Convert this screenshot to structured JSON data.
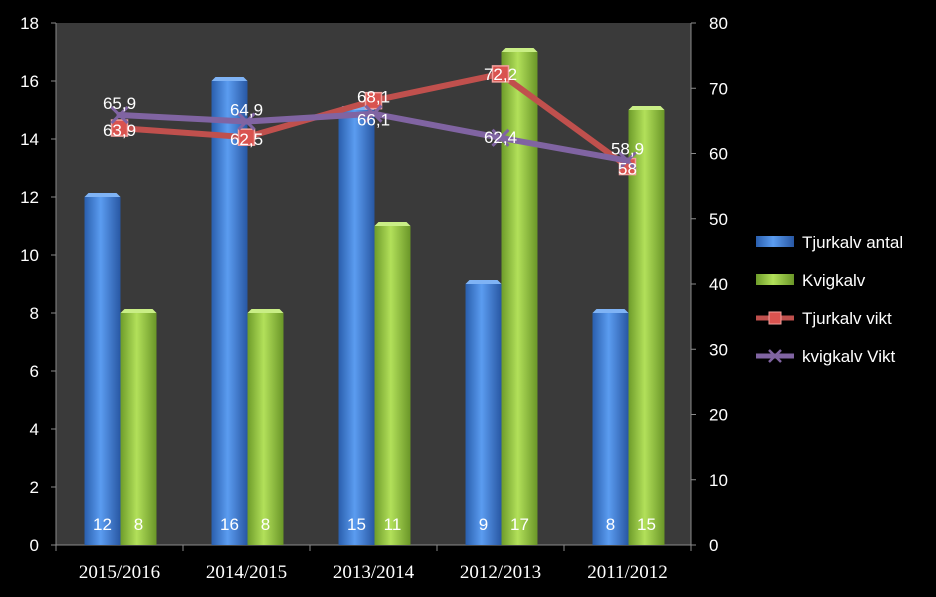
{
  "chart_data": {
    "type": "bar",
    "categories": [
      "2015/2016",
      "2014/2015",
      "2013/2014",
      "2012/2013",
      "2011/2012"
    ],
    "bar_series": [
      {
        "name": "Tjurkalv antal",
        "values": [
          12,
          16,
          15,
          9,
          8
        ],
        "labels": [
          "12",
          "16",
          "15",
          "9",
          "8"
        ],
        "color": "#3d7fd6"
      },
      {
        "name": "Kvigkalv",
        "values": [
          8,
          8,
          11,
          17,
          15
        ],
        "labels": [
          "8",
          "8",
          "11",
          "17",
          "15"
        ],
        "color": "#8ec63f"
      }
    ],
    "line_series": [
      {
        "name": "Tjurkalv vikt",
        "values": [
          63.9,
          62.5,
          68.1,
          72.2,
          58
        ],
        "labels": [
          "63,9",
          "62,5",
          "68,1",
          "72,2",
          "58"
        ],
        "color": "#c0504d",
        "marker": "square"
      },
      {
        "name": "kvigkalv Vikt",
        "values": [
          65.9,
          64.9,
          66.1,
          62.4,
          58.9
        ],
        "labels": [
          "65,9",
          "64,9",
          "66,1",
          "62,4",
          "58,9"
        ],
        "color": "#8064a2",
        "marker": "x"
      }
    ],
    "y_left": {
      "min": 0,
      "max": 18,
      "step": 2,
      "ticks": [
        "0",
        "2",
        "4",
        "6",
        "8",
        "10",
        "12",
        "14",
        "16",
        "18"
      ]
    },
    "y_right": {
      "min": 0,
      "max": 80,
      "step": 10,
      "ticks": [
        "0",
        "10",
        "20",
        "30",
        "40",
        "50",
        "60",
        "70",
        "80"
      ]
    },
    "legend_position": "right",
    "grid": false,
    "background": "#000000",
    "plot_background": "#3a3a3a"
  }
}
